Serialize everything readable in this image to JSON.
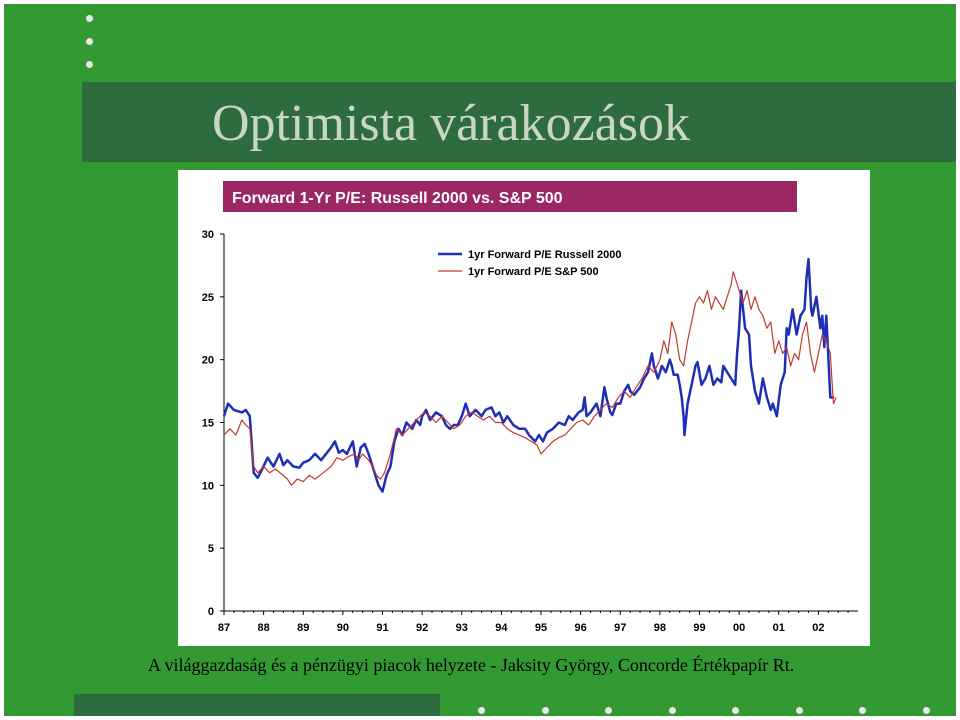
{
  "slide": {
    "title": "Optimista várakozások",
    "footer": "A világgazdaság és a pénzügyi piacok helyzete - Jaksity György, Concorde Értékpapír Rt.",
    "colors": {
      "background": "#339933",
      "title_band": "#2e6b3f",
      "title_text": "#c8d6c8",
      "chart_header": "#9b2763",
      "bullet_dot": "#e9e9e9"
    },
    "decorations": {
      "top_left_bullets": 3,
      "bottom_bullets": 8
    }
  },
  "chart_data": {
    "type": "line",
    "title": "Forward 1-Yr P/E:  Russell 2000 vs. S&P 500",
    "xlabel": "",
    "ylabel": "",
    "xlim": [
      1987,
      2002.8
    ],
    "ylim": [
      0,
      30
    ],
    "yticks": [
      0,
      5,
      10,
      15,
      20,
      25,
      30
    ],
    "xticks": [
      "87",
      "88",
      "89",
      "90",
      "91",
      "92",
      "93",
      "94",
      "95",
      "96",
      "97",
      "98",
      "99",
      "00",
      "01",
      "02"
    ],
    "grid": false,
    "legend_position": "top-right",
    "series": [
      {
        "name": "1yr Forward P/E Russell 2000",
        "color": "#1f2fb5",
        "points": [
          [
            1987.0,
            15.5
          ],
          [
            1987.1,
            16.5
          ],
          [
            1987.25,
            16.0
          ],
          [
            1987.45,
            15.8
          ],
          [
            1987.55,
            16.0
          ],
          [
            1987.65,
            15.5
          ],
          [
            1987.75,
            11.0
          ],
          [
            1987.85,
            10.6
          ],
          [
            1987.95,
            11.2
          ],
          [
            1988.1,
            12.2
          ],
          [
            1988.25,
            11.5
          ],
          [
            1988.4,
            12.5
          ],
          [
            1988.5,
            11.6
          ],
          [
            1988.6,
            12.0
          ],
          [
            1988.75,
            11.5
          ],
          [
            1988.9,
            11.4
          ],
          [
            1989.0,
            11.8
          ],
          [
            1989.15,
            12.0
          ],
          [
            1989.3,
            12.5
          ],
          [
            1989.45,
            12.0
          ],
          [
            1989.55,
            12.4
          ],
          [
            1989.7,
            13.0
          ],
          [
            1989.8,
            13.5
          ],
          [
            1989.9,
            12.6
          ],
          [
            1990.0,
            12.8
          ],
          [
            1990.1,
            12.5
          ],
          [
            1990.25,
            13.5
          ],
          [
            1990.35,
            11.5
          ],
          [
            1990.45,
            13.0
          ],
          [
            1990.55,
            13.3
          ],
          [
            1990.65,
            12.5
          ],
          [
            1990.75,
            11.5
          ],
          [
            1990.9,
            10.0
          ],
          [
            1991.0,
            9.5
          ],
          [
            1991.1,
            10.8
          ],
          [
            1991.2,
            11.5
          ],
          [
            1991.3,
            13.5
          ],
          [
            1991.4,
            14.5
          ],
          [
            1991.5,
            14.0
          ],
          [
            1991.6,
            15.0
          ],
          [
            1991.75,
            14.5
          ],
          [
            1991.85,
            15.2
          ],
          [
            1991.95,
            14.8
          ],
          [
            1992.0,
            15.5
          ],
          [
            1992.1,
            16.0
          ],
          [
            1992.2,
            15.2
          ],
          [
            1992.35,
            15.8
          ],
          [
            1992.5,
            15.5
          ],
          [
            1992.6,
            14.8
          ],
          [
            1992.7,
            14.5
          ],
          [
            1992.8,
            14.8
          ],
          [
            1992.9,
            14.8
          ],
          [
            1993.0,
            15.5
          ],
          [
            1993.1,
            16.5
          ],
          [
            1993.2,
            15.5
          ],
          [
            1993.35,
            16.0
          ],
          [
            1993.5,
            15.5
          ],
          [
            1993.6,
            16.0
          ],
          [
            1993.75,
            16.2
          ],
          [
            1993.85,
            15.5
          ],
          [
            1993.95,
            15.8
          ],
          [
            1994.05,
            15.0
          ],
          [
            1994.15,
            15.5
          ],
          [
            1994.3,
            14.8
          ],
          [
            1994.45,
            14.5
          ],
          [
            1994.6,
            14.5
          ],
          [
            1994.7,
            14.0
          ],
          [
            1994.85,
            13.5
          ],
          [
            1994.95,
            14.0
          ],
          [
            1995.05,
            13.5
          ],
          [
            1995.15,
            14.2
          ],
          [
            1995.3,
            14.5
          ],
          [
            1995.45,
            15.0
          ],
          [
            1995.6,
            14.8
          ],
          [
            1995.7,
            15.5
          ],
          [
            1995.8,
            15.2
          ],
          [
            1995.95,
            15.8
          ],
          [
            1996.05,
            16.0
          ],
          [
            1996.1,
            17.0
          ],
          [
            1996.15,
            15.5
          ],
          [
            1996.25,
            15.8
          ],
          [
            1996.4,
            16.5
          ],
          [
            1996.5,
            15.5
          ],
          [
            1996.6,
            17.8
          ],
          [
            1996.65,
            17.0
          ],
          [
            1996.75,
            15.8
          ],
          [
            1996.8,
            15.6
          ],
          [
            1996.9,
            16.5
          ],
          [
            1997.0,
            16.5
          ],
          [
            1997.1,
            17.5
          ],
          [
            1997.2,
            18.0
          ],
          [
            1997.25,
            17.5
          ],
          [
            1997.35,
            17.2
          ],
          [
            1997.5,
            17.8
          ],
          [
            1997.6,
            18.5
          ],
          [
            1997.7,
            19.0
          ],
          [
            1997.8,
            20.5
          ],
          [
            1997.85,
            19.5
          ],
          [
            1997.95,
            18.5
          ],
          [
            1998.05,
            19.5
          ],
          [
            1998.15,
            19.0
          ],
          [
            1998.25,
            20.0
          ],
          [
            1998.3,
            19.5
          ],
          [
            1998.35,
            18.8
          ],
          [
            1998.45,
            18.8
          ],
          [
            1998.5,
            18.0
          ],
          [
            1998.55,
            17.0
          ],
          [
            1998.6,
            15.5
          ],
          [
            1998.62,
            14.0
          ],
          [
            1998.7,
            16.5
          ],
          [
            1998.8,
            18.0
          ],
          [
            1998.9,
            19.5
          ],
          [
            1998.95,
            19.8
          ],
          [
            1999.05,
            18.0
          ],
          [
            1999.15,
            18.5
          ],
          [
            1999.25,
            19.5
          ],
          [
            1999.35,
            18.0
          ],
          [
            1999.45,
            18.5
          ],
          [
            1999.55,
            18.2
          ],
          [
            1999.6,
            19.5
          ],
          [
            1999.7,
            19.0
          ],
          [
            1999.8,
            18.5
          ],
          [
            1999.9,
            18.0
          ],
          [
            1999.95,
            20.5
          ],
          [
            2000.0,
            22.5
          ],
          [
            2000.05,
            25.5
          ],
          [
            2000.1,
            24.0
          ],
          [
            2000.15,
            22.5
          ],
          [
            2000.25,
            22.0
          ],
          [
            2000.3,
            19.5
          ],
          [
            2000.4,
            17.5
          ],
          [
            2000.5,
            16.5
          ],
          [
            2000.55,
            17.5
          ],
          [
            2000.6,
            18.5
          ],
          [
            2000.7,
            17.0
          ],
          [
            2000.8,
            16.0
          ],
          [
            2000.85,
            16.5
          ],
          [
            2000.95,
            15.5
          ],
          [
            2001.05,
            18.0
          ],
          [
            2001.15,
            19.0
          ],
          [
            2001.2,
            22.5
          ],
          [
            2001.25,
            22.0
          ],
          [
            2001.35,
            24.0
          ],
          [
            2001.45,
            22.0
          ],
          [
            2001.55,
            23.5
          ],
          [
            2001.65,
            24.0
          ],
          [
            2001.7,
            26.5
          ],
          [
            2001.75,
            28.0
          ],
          [
            2001.82,
            24.0
          ],
          [
            2001.85,
            23.5
          ],
          [
            2001.95,
            25.0
          ],
          [
            2002.05,
            22.5
          ],
          [
            2002.1,
            23.5
          ],
          [
            2002.15,
            21.0
          ],
          [
            2002.2,
            23.5
          ],
          [
            2002.3,
            17.0
          ],
          [
            2002.4,
            17.0
          ]
        ]
      },
      {
        "name": "1yr Forward P/E S&P 500",
        "color": "#c23a2e",
        "points": [
          [
            1987.0,
            14.0
          ],
          [
            1987.15,
            14.5
          ],
          [
            1987.3,
            14.0
          ],
          [
            1987.45,
            15.2
          ],
          [
            1987.55,
            14.8
          ],
          [
            1987.65,
            14.5
          ],
          [
            1987.75,
            11.5
          ],
          [
            1987.85,
            11.0
          ],
          [
            1988.0,
            11.5
          ],
          [
            1988.15,
            11.0
          ],
          [
            1988.3,
            11.3
          ],
          [
            1988.45,
            10.9
          ],
          [
            1988.6,
            10.5
          ],
          [
            1988.7,
            10.0
          ],
          [
            1988.85,
            10.5
          ],
          [
            1989.0,
            10.3
          ],
          [
            1989.15,
            10.8
          ],
          [
            1989.3,
            10.5
          ],
          [
            1989.5,
            11.0
          ],
          [
            1989.7,
            11.5
          ],
          [
            1989.85,
            12.2
          ],
          [
            1990.0,
            12.0
          ],
          [
            1990.15,
            12.3
          ],
          [
            1990.3,
            12.5
          ],
          [
            1990.4,
            12.0
          ],
          [
            1990.5,
            12.5
          ],
          [
            1990.65,
            12.0
          ],
          [
            1990.75,
            11.5
          ],
          [
            1990.85,
            10.8
          ],
          [
            1990.95,
            10.5
          ],
          [
            1991.05,
            11.0
          ],
          [
            1991.2,
            12.5
          ],
          [
            1991.35,
            14.5
          ],
          [
            1991.5,
            14.0
          ],
          [
            1991.65,
            14.5
          ],
          [
            1991.8,
            15.0
          ],
          [
            1991.95,
            15.5
          ],
          [
            1992.05,
            15.8
          ],
          [
            1992.2,
            15.5
          ],
          [
            1992.35,
            15.0
          ],
          [
            1992.5,
            15.5
          ],
          [
            1992.65,
            15.0
          ],
          [
            1992.8,
            14.5
          ],
          [
            1992.95,
            14.8
          ],
          [
            1993.1,
            15.5
          ],
          [
            1993.25,
            15.8
          ],
          [
            1993.4,
            15.5
          ],
          [
            1993.55,
            15.2
          ],
          [
            1993.7,
            15.5
          ],
          [
            1993.85,
            15.0
          ],
          [
            1994.0,
            15.0
          ],
          [
            1994.15,
            14.5
          ],
          [
            1994.3,
            14.2
          ],
          [
            1994.45,
            14.0
          ],
          [
            1994.6,
            13.8
          ],
          [
            1994.75,
            13.5
          ],
          [
            1994.9,
            13.2
          ],
          [
            1995.0,
            12.5
          ],
          [
            1995.15,
            13.0
          ],
          [
            1995.3,
            13.5
          ],
          [
            1995.45,
            13.8
          ],
          [
            1995.6,
            14.0
          ],
          [
            1995.75,
            14.5
          ],
          [
            1995.9,
            15.0
          ],
          [
            1996.05,
            15.2
          ],
          [
            1996.2,
            14.8
          ],
          [
            1996.35,
            15.5
          ],
          [
            1996.5,
            16.0
          ],
          [
            1996.65,
            16.5
          ],
          [
            1996.8,
            16.2
          ],
          [
            1996.95,
            17.0
          ],
          [
            1997.1,
            17.5
          ],
          [
            1997.25,
            17.0
          ],
          [
            1997.4,
            17.8
          ],
          [
            1997.55,
            18.5
          ],
          [
            1997.7,
            19.5
          ],
          [
            1997.85,
            19.0
          ],
          [
            1998.0,
            20.0
          ],
          [
            1998.1,
            21.5
          ],
          [
            1998.2,
            20.5
          ],
          [
            1998.3,
            23.0
          ],
          [
            1998.4,
            22.0
          ],
          [
            1998.5,
            20.0
          ],
          [
            1998.6,
            19.5
          ],
          [
            1998.7,
            21.5
          ],
          [
            1998.8,
            23.0
          ],
          [
            1998.9,
            24.5
          ],
          [
            1999.0,
            25.0
          ],
          [
            1999.1,
            24.5
          ],
          [
            1999.2,
            25.5
          ],
          [
            1999.3,
            24.0
          ],
          [
            1999.4,
            25.0
          ],
          [
            1999.5,
            24.5
          ],
          [
            1999.6,
            24.0
          ],
          [
            1999.7,
            25.0
          ],
          [
            1999.8,
            26.0
          ],
          [
            1999.85,
            27.0
          ],
          [
            1999.9,
            26.5
          ],
          [
            2000.0,
            25.5
          ],
          [
            2000.1,
            24.5
          ],
          [
            2000.2,
            25.5
          ],
          [
            2000.3,
            24.0
          ],
          [
            2000.4,
            25.0
          ],
          [
            2000.5,
            24.0
          ],
          [
            2000.6,
            23.5
          ],
          [
            2000.7,
            22.5
          ],
          [
            2000.8,
            23.0
          ],
          [
            2000.9,
            20.5
          ],
          [
            2001.0,
            21.5
          ],
          [
            2001.1,
            20.5
          ],
          [
            2001.2,
            21.0
          ],
          [
            2001.3,
            19.5
          ],
          [
            2001.4,
            20.5
          ],
          [
            2001.5,
            20.0
          ],
          [
            2001.6,
            22.0
          ],
          [
            2001.7,
            23.0
          ],
          [
            2001.8,
            20.5
          ],
          [
            2001.9,
            19.0
          ],
          [
            2002.0,
            20.5
          ],
          [
            2002.1,
            22.0
          ],
          [
            2002.2,
            21.5
          ],
          [
            2002.3,
            20.5
          ],
          [
            2002.38,
            16.5
          ],
          [
            2002.45,
            17.0
          ]
        ]
      }
    ]
  }
}
